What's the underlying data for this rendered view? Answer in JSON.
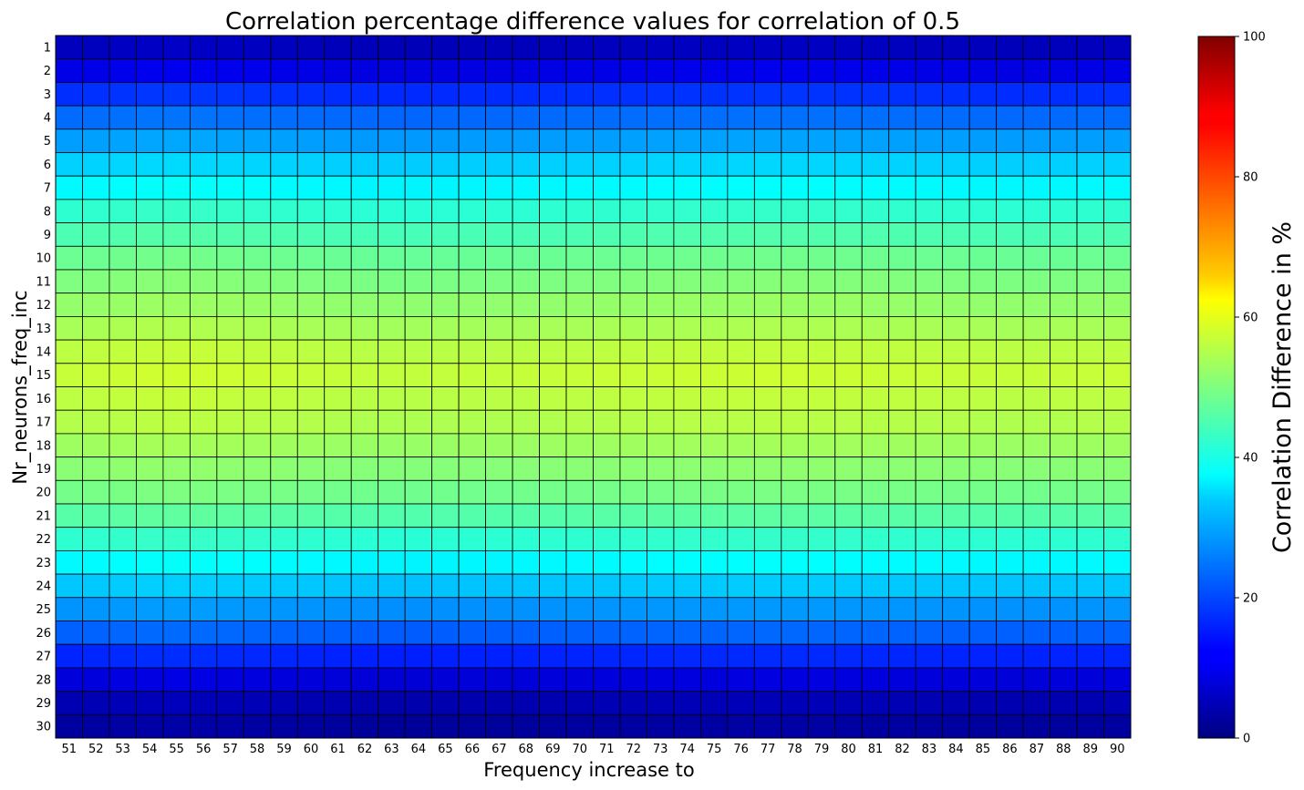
{
  "chart_data": {
    "type": "heatmap",
    "title": "Correlation percentage difference values for correlation of 0.5",
    "xlabel": "Frequency increase to",
    "ylabel": "Nr_neurons_freq_inc",
    "colorbar_label": "Correlation Difference in %",
    "colormap": "jet",
    "vmin": 0,
    "vmax": 100,
    "colorbar_ticks": [
      0,
      20,
      40,
      60,
      80,
      100
    ],
    "grid": true,
    "x_categories": [
      51,
      52,
      53,
      54,
      55,
      56,
      57,
      58,
      59,
      60,
      61,
      62,
      63,
      64,
      65,
      66,
      67,
      68,
      69,
      70,
      71,
      72,
      73,
      74,
      75,
      76,
      77,
      78,
      79,
      80,
      81,
      82,
      83,
      84,
      85,
      86,
      87,
      88,
      89,
      90
    ],
    "y_categories": [
      1,
      2,
      3,
      4,
      5,
      6,
      7,
      8,
      9,
      10,
      11,
      12,
      13,
      14,
      15,
      16,
      17,
      18,
      19,
      20,
      21,
      22,
      23,
      24,
      25,
      26,
      27,
      28,
      29,
      30
    ],
    "row_values": [
      6,
      10,
      17,
      23,
      28,
      33,
      37,
      42,
      45,
      48,
      50,
      52,
      54,
      56,
      57,
      56,
      55,
      53,
      51,
      49,
      46,
      42,
      37,
      32,
      27,
      22,
      16,
      9,
      5,
      3
    ],
    "column_offsets": [
      0.0,
      0.2,
      0.5,
      0.8,
      0.9,
      0.8,
      0.6,
      0.4,
      0.2,
      0.0,
      -0.2,
      -0.4,
      -0.5,
      -0.5,
      -0.4,
      -0.3,
      -0.3,
      -0.2,
      -0.1,
      0.0,
      0.1,
      0.2,
      0.3,
      0.4,
      0.4,
      0.5,
      0.6,
      0.6,
      0.5,
      0.4,
      0.3,
      0.2,
      0.1,
      0.0,
      -0.1,
      -0.2,
      -0.2,
      -0.1,
      0.0,
      0.1
    ]
  }
}
